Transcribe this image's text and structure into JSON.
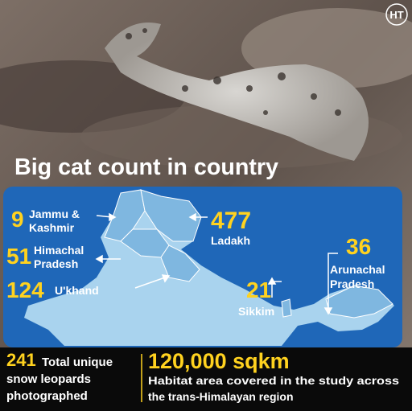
{
  "logo": "HT",
  "title": "Big cat count in country",
  "regions": [
    {
      "count": 9,
      "name": [
        "Jammu &",
        "Kashmir"
      ]
    },
    {
      "count": 477,
      "name": [
        "Ladakh"
      ]
    },
    {
      "count": 51,
      "name": [
        "Himachal",
        "Pradesh"
      ]
    },
    {
      "count": 124,
      "name": [
        "U'khand"
      ]
    },
    {
      "count": 21,
      "name": [
        "Sikkim"
      ]
    },
    {
      "count": 36,
      "name": [
        "Arunachal",
        "Pradesh"
      ]
    }
  ],
  "footer": {
    "left": {
      "count": 241,
      "text": [
        "Total unique",
        "snow leopards",
        "photographed"
      ]
    },
    "right": {
      "figure": "120,000 sqkm",
      "text": [
        "Habitat area covered in the study across",
        "the trans-Himalayan region"
      ]
    }
  }
}
